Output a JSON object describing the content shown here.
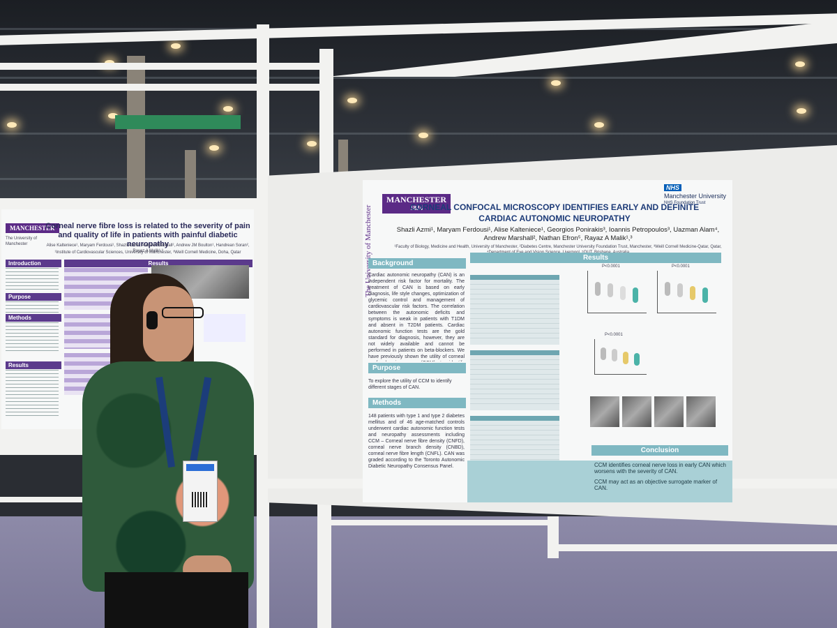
{
  "left_poster": {
    "logo": "MANCHESTER",
    "logo_sub": "The University of Manchester",
    "title": "Corneal nerve fibre loss is related to the severity of pain and quality of life in patients with painful diabetic neuropathy",
    "authors": "Alise Kalteniece¹, Maryam Ferdousi¹, Shazli Azmi¹, Andrew Marshall², Andrew JM Boulton¹, Handrean Soran², Rayaz A Malik¹,³",
    "affiliations": "¹Institute of Cardiovascular Sciences, University of Manchester, ³Weill Cornell Medicine, Doha, Qatar",
    "sections": [
      "Introduction",
      "Purpose",
      "Methods",
      "Results",
      "Results"
    ]
  },
  "right_poster": {
    "logo": "MANCHESTER",
    "logo_year": "1824",
    "side_text": "The University of Manchester",
    "nhs_logo": "NHS",
    "nhs_org": "Manchester University",
    "nhs_sub": "NHS Foundation Trust",
    "title_line1": "CORNEAL CONFOCAL MICROSCOPY IDENTIFIES EARLY AND DEFINITE",
    "title_line2": "CARDIAC AUTONOMIC NEUROPATHY",
    "authors": "Shazli Azmi¹, Maryam Ferdousi¹, Alise Kalteniece¹, Georgios Ponirakis³, Ioannis Petropoulos³, Uazman Alam⁴, Andrew Marshall², Nathan Efron⁵, Rayaz A Malik¹,³",
    "affiliations": "¹Faculty of Biology, Medicine and Health, University of Manchester, ²Diabetes Centre, Manchester University Foundation Trust, Manchester, ³Weill Cornell Medicine-Qatar, Qatar, ⁴Department of Eye and Vision Science, Liverpool, ⁵QUT, Brisbane, Australia",
    "background_header": "Background",
    "background_text": "Cardiac autonomic neuropathy (CAN) is an independent risk factor for mortality. The treatment of CAN is based on early diagnosis, life style changes, optimization of glycemic control and management of cardiovascular risk factors. The correlation between the autonomic deficits and symptoms is weak in patients with T1DM and absent in T2DM patients. Cardiac autonomic function tests are the gold standard for diagnosis, however, they are not widely available and cannot be performed in patients on beta-blockers. We have previously shown the utility of corneal confocal microscopy (CCM) to identify advanced diabetic autonomic neuropathy.",
    "purpose_header": "Purpose",
    "purpose_text": "To explore the utility of CCM to identify different stages of CAN.",
    "methods_header": "Methods",
    "methods_text": "148 patients with type 1 and type 2 diabetes mellitus and of 46 age-matched controls underwent cardiac autonomic function tests and neuropathy assessments including CCM – Corneal nerve fibre density (CNFD), corneal nerve branch density (CNBD), corneal nerve fibre length (CNFL). CAN was graded according to the Toronto Autonomic Diabetic Neuropathy Consensus Panel.",
    "results_header": "Results",
    "conclusion_header": "Conclusion",
    "conclusion_items": [
      "CCM identifies corneal nerve loss in early CAN which worsens with the severity of CAN.",
      "CCM may act as an objective surrogate marker of CAN."
    ],
    "plot_pvalue": "P<0.0001"
  },
  "colors": {
    "poster_teal": "#7fb8c2",
    "manchester_purple": "#5b2a86",
    "title_blue": "#1d3b78",
    "floor": "#8d8aa8"
  }
}
